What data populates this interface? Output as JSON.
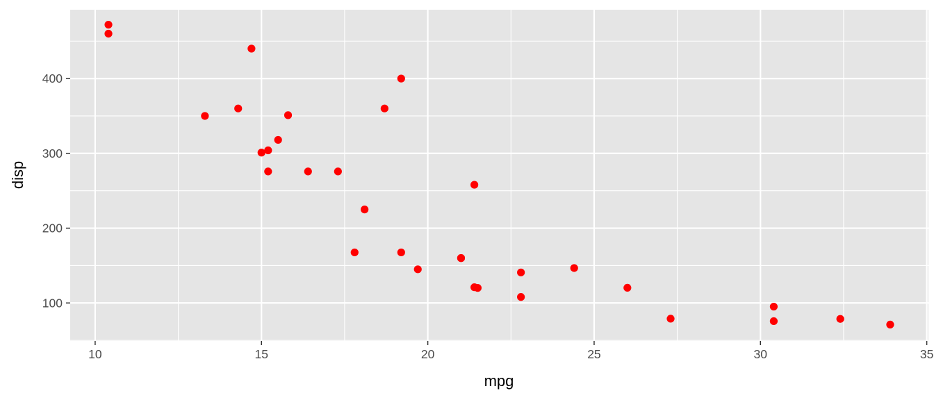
{
  "chart_data": {
    "type": "scatter",
    "title": "",
    "xlabel": "mpg",
    "ylabel": "disp",
    "xlim": [
      9.25,
      35.05
    ],
    "ylim": [
      49.2,
      492.0
    ],
    "x_ticks": [
      10,
      15,
      20,
      25,
      30,
      35
    ],
    "y_ticks": [
      100,
      200,
      300,
      400
    ],
    "x_tick_labels": [
      "10",
      "15",
      "20",
      "25",
      "30",
      "35"
    ],
    "y_tick_labels": [
      "100",
      "200",
      "300",
      "400"
    ],
    "grid": true,
    "legend": "none",
    "colors": {
      "panel_background": "#e5e5e5",
      "grid_line": "#ffffff",
      "point": "#ff0000"
    },
    "points": [
      {
        "x": 21.0,
        "y": 160.0
      },
      {
        "x": 21.0,
        "y": 160.0
      },
      {
        "x": 22.8,
        "y": 108.0
      },
      {
        "x": 21.4,
        "y": 258.0
      },
      {
        "x": 18.7,
        "y": 360.0
      },
      {
        "x": 18.1,
        "y": 225.0
      },
      {
        "x": 14.3,
        "y": 360.0
      },
      {
        "x": 24.4,
        "y": 146.7
      },
      {
        "x": 22.8,
        "y": 140.8
      },
      {
        "x": 19.2,
        "y": 167.6
      },
      {
        "x": 17.8,
        "y": 167.6
      },
      {
        "x": 16.4,
        "y": 275.8
      },
      {
        "x": 17.3,
        "y": 275.8
      },
      {
        "x": 15.2,
        "y": 275.8
      },
      {
        "x": 10.4,
        "y": 472.0
      },
      {
        "x": 10.4,
        "y": 460.0
      },
      {
        "x": 14.7,
        "y": 440.0
      },
      {
        "x": 32.4,
        "y": 78.7
      },
      {
        "x": 30.4,
        "y": 75.7
      },
      {
        "x": 33.9,
        "y": 71.1
      },
      {
        "x": 21.5,
        "y": 120.1
      },
      {
        "x": 15.5,
        "y": 318.0
      },
      {
        "x": 15.2,
        "y": 304.0
      },
      {
        "x": 13.3,
        "y": 350.0
      },
      {
        "x": 19.2,
        "y": 400.0
      },
      {
        "x": 27.3,
        "y": 79.0
      },
      {
        "x": 26.0,
        "y": 120.3
      },
      {
        "x": 30.4,
        "y": 95.1
      },
      {
        "x": 15.8,
        "y": 351.0
      },
      {
        "x": 19.7,
        "y": 145.0
      },
      {
        "x": 15.0,
        "y": 301.0
      },
      {
        "x": 21.4,
        "y": 121.0
      }
    ]
  }
}
